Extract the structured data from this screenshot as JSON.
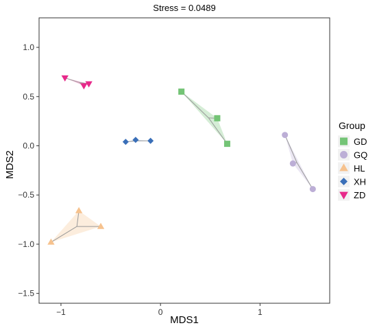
{
  "chart_data": {
    "type": "scatter",
    "title": "Stress = 0.0489",
    "xlabel": "MDS1",
    "ylabel": "MDS2",
    "xlim": [
      -1.22,
      1.7
    ],
    "ylim": [
      -1.6,
      1.3
    ],
    "xticks": [
      -1,
      0,
      1
    ],
    "xtick_labels": [
      "−1",
      "0",
      "1"
    ],
    "yticks": [
      1.0,
      0.5,
      0.0,
      -0.5,
      -1.0,
      -1.5
    ],
    "ytick_labels": [
      "1.0",
      "0.5",
      "0.0",
      "−0.5",
      "−1.0",
      "−1.5"
    ],
    "grid": false,
    "legend": {
      "title": "Group",
      "position": "right"
    },
    "series": [
      {
        "name": "GD",
        "marker": "square",
        "color": "#74c476",
        "hull": true,
        "points": [
          [
            0.21,
            0.55
          ],
          [
            0.57,
            0.28
          ],
          [
            0.67,
            0.02
          ]
        ]
      },
      {
        "name": "GQ",
        "marker": "circle",
        "color": "#bcaed6",
        "hull": true,
        "points": [
          [
            1.25,
            0.11
          ],
          [
            1.33,
            -0.18
          ],
          [
            1.53,
            -0.44
          ]
        ]
      },
      {
        "name": "HL",
        "marker": "triangle-up",
        "color": "#f6c28e",
        "hull": true,
        "points": [
          [
            -0.82,
            -0.66
          ],
          [
            -0.6,
            -0.82
          ],
          [
            -1.1,
            -0.98
          ]
        ]
      },
      {
        "name": "XH",
        "marker": "diamond",
        "color": "#3a6fb8",
        "hull": true,
        "points": [
          [
            -0.35,
            0.04
          ],
          [
            -0.25,
            0.06
          ],
          [
            -0.1,
            0.05
          ]
        ]
      },
      {
        "name": "ZD",
        "marker": "triangle-down",
        "color": "#e7298a",
        "hull": true,
        "points": [
          [
            -0.96,
            0.69
          ],
          [
            -0.77,
            0.61
          ],
          [
            -0.72,
            0.63
          ]
        ]
      }
    ]
  }
}
